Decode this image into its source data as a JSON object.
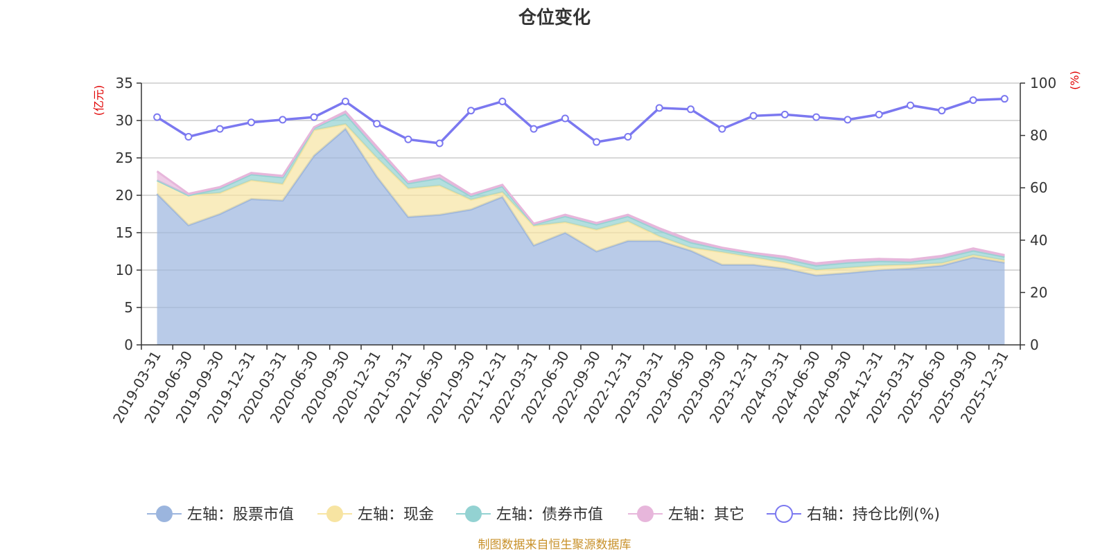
{
  "chart_data": {
    "type": "area",
    "title": "仓位变化",
    "categories": [
      "2019-03-31",
      "2019-06-30",
      "2019-09-30",
      "2019-12-31",
      "2020-03-31",
      "2020-06-30",
      "2020-09-30",
      "2020-12-31",
      "2021-03-31",
      "2021-06-30",
      "2021-09-30",
      "2021-12-31",
      "2022-03-31",
      "2022-06-30",
      "2022-09-30",
      "2022-12-31",
      "2023-03-31",
      "2023-06-30",
      "2023-09-30",
      "2023-12-31",
      "2024-03-31",
      "2024-06-30",
      "2024-09-30",
      "2024-12-31",
      "2025-03-31",
      "2025-06-30",
      "2025-09-30",
      "2025-12-31"
    ],
    "left_axis": {
      "unit": "(亿元)",
      "ylim": [
        0,
        35
      ],
      "ticks": [
        0,
        5,
        10,
        15,
        20,
        25,
        30,
        35
      ]
    },
    "right_axis": {
      "unit": "(%)",
      "ylim": [
        0,
        100
      ],
      "ticks": [
        0,
        20,
        40,
        60,
        80,
        100
      ]
    },
    "series": [
      {
        "name": "左轴：股票市值",
        "axis": "left",
        "color": "#9bb5de",
        "values": [
          20.2,
          16.0,
          17.5,
          19.5,
          19.3,
          25.3,
          28.9,
          22.5,
          17.1,
          17.4,
          18.1,
          19.8,
          13.3,
          15.0,
          12.5,
          13.9,
          13.9,
          12.6,
          10.7,
          10.7,
          10.2,
          9.3,
          9.6,
          10.0,
          10.2,
          10.6,
          11.7,
          11.0
        ]
      },
      {
        "name": "左轴：现金",
        "axis": "left",
        "color": "#f7e4a2",
        "values": [
          1.8,
          4.0,
          2.8,
          2.5,
          2.2,
          3.4,
          0.6,
          2.5,
          3.8,
          3.9,
          1.3,
          0.6,
          2.6,
          1.4,
          2.9,
          2.6,
          0.6,
          0.4,
          1.7,
          1.0,
          0.8,
          0.7,
          0.7,
          0.6,
          0.5,
          0.3,
          0.3,
          0.3
        ]
      },
      {
        "name": "左轴：债券市值",
        "axis": "left",
        "color": "#93d2d2",
        "values": [
          0,
          0,
          0.6,
          0.8,
          0.9,
          0.3,
          1.4,
          1.1,
          0.7,
          1.0,
          0.5,
          0.8,
          0.2,
          0.8,
          0.7,
          0.7,
          0.8,
          0.7,
          0.4,
          0.4,
          0.5,
          0.6,
          0.7,
          0.6,
          0.4,
          0.7,
          0.6,
          0.5
        ]
      },
      {
        "name": "左轴：其它",
        "axis": "left",
        "color": "#e7b6db",
        "values": [
          1.2,
          0.2,
          0.2,
          0.2,
          0.2,
          0.1,
          0.3,
          0.4,
          0.2,
          0.4,
          0.2,
          0.2,
          0.1,
          0.2,
          0.2,
          0.2,
          0.3,
          0.3,
          0.2,
          0.2,
          0.3,
          0.3,
          0.3,
          0.3,
          0.3,
          0.3,
          0.3,
          0.2
        ]
      },
      {
        "name": "右轴：持仓比例(%)",
        "axis": "right",
        "color": "#7b78f0",
        "values": [
          87,
          79.5,
          82.5,
          85,
          86,
          87,
          93,
          84.5,
          78.5,
          77,
          89.5,
          93,
          82.5,
          86.5,
          77.5,
          79.5,
          90.5,
          90,
          82.5,
          87.5,
          88,
          87,
          86,
          88,
          91.5,
          89.5,
          93.5,
          94
        ]
      }
    ],
    "legend": "bottom",
    "grid": true
  },
  "footer": "制图数据来自恒生聚源数据库",
  "footer_color": "#c8912a"
}
